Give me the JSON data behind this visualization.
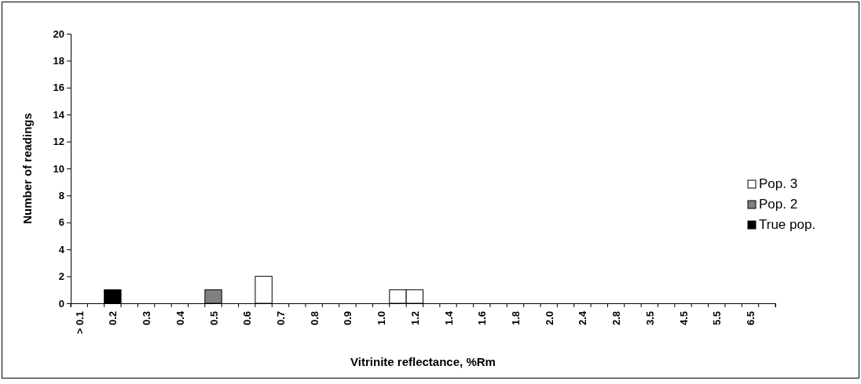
{
  "chart_data": {
    "type": "bar",
    "xlabel": "Vitrinite reflectance, %Rm",
    "ylabel": "Number of readings",
    "categories": [
      "> 0.1",
      null,
      "0.2",
      null,
      "0.3",
      null,
      "0.4",
      null,
      "0.5",
      null,
      "0.6",
      null,
      "0.7",
      null,
      "0.8",
      null,
      "0.9",
      null,
      "1.0",
      null,
      "1.2",
      null,
      "1.4",
      null,
      "1.6",
      null,
      "1.8",
      null,
      "2.0",
      null,
      "2.4",
      null,
      "2.8",
      null,
      "3.5",
      null,
      "4.5",
      null,
      "5.5",
      null,
      "6.5",
      null
    ],
    "series": [
      {
        "name": "True pop.",
        "color": "#000000",
        "values": [
          0,
          0,
          1,
          0,
          0,
          0,
          0,
          0,
          0,
          0,
          0,
          0,
          0,
          0,
          0,
          0,
          0,
          0,
          0,
          0,
          0,
          0,
          0,
          0,
          0,
          0,
          0,
          0,
          0,
          0,
          0,
          0,
          0,
          0,
          0,
          0,
          0,
          0,
          0,
          0,
          0,
          0
        ]
      },
      {
        "name": "Pop. 2",
        "color": "#808080",
        "values": [
          0,
          0,
          0,
          0,
          0,
          0,
          0,
          0,
          1,
          0,
          0,
          0,
          0,
          0,
          0,
          0,
          0,
          0,
          0,
          0,
          0,
          0,
          0,
          0,
          0,
          0,
          0,
          0,
          0,
          0,
          0,
          0,
          0,
          0,
          0,
          0,
          0,
          0,
          0,
          0,
          0,
          0
        ]
      },
      {
        "name": "Pop. 3",
        "color": "#ffffff",
        "values": [
          0,
          0,
          0,
          0,
          0,
          0,
          0,
          0,
          0,
          0,
          0,
          2,
          0,
          0,
          0,
          0,
          0,
          0,
          0,
          1,
          1,
          0,
          0,
          0,
          0,
          0,
          0,
          0,
          0,
          0,
          0,
          0,
          0,
          0,
          0,
          0,
          0,
          0,
          0,
          0,
          0,
          0
        ]
      }
    ],
    "ylim": [
      0,
      20
    ],
    "yticks": [
      0,
      2,
      4,
      6,
      8,
      10,
      12,
      14,
      16,
      18,
      20
    ],
    "grid": false,
    "legend": "right"
  }
}
